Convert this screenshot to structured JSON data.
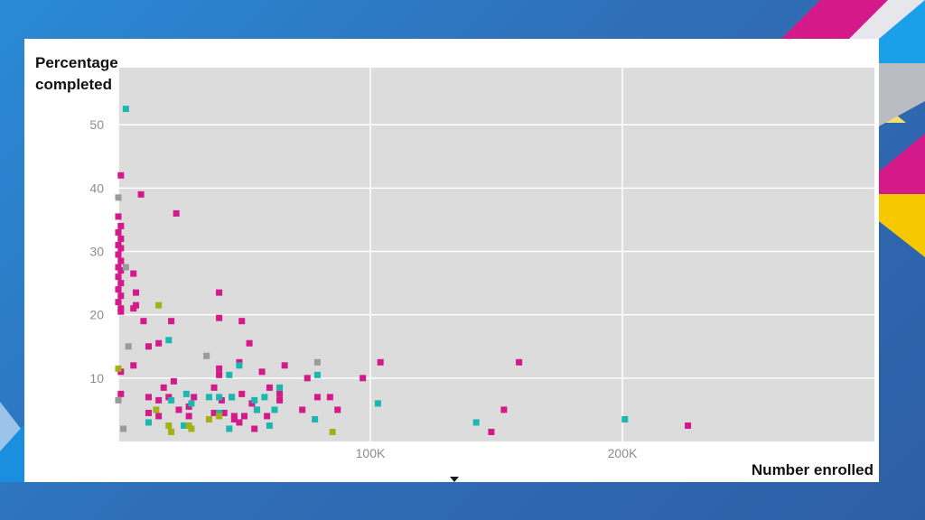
{
  "slide": {
    "background": "#2f6fb8",
    "accent_magenta": "#d4198a",
    "accent_yellow": "#f5c800",
    "accent_blue": "#1aa0e8"
  },
  "chart_data": {
    "type": "scatter",
    "title": "",
    "ylabel_lines": [
      "Percentage",
      "completed"
    ],
    "xlabel": "Number enrolled",
    "xlim": [
      0,
      300000
    ],
    "ylim": [
      0,
      59
    ],
    "x_ticks": [
      {
        "value": 100000,
        "label": "100K"
      },
      {
        "value": 200000,
        "label": "200K"
      }
    ],
    "y_ticks": [
      {
        "value": 10,
        "label": "10"
      },
      {
        "value": 20,
        "label": "20"
      },
      {
        "value": 30,
        "label": "30"
      },
      {
        "value": 40,
        "label": "40"
      },
      {
        "value": 50,
        "label": "50"
      }
    ],
    "grid": true,
    "plot_background": "#dcdcdc",
    "legend": "none",
    "series": [
      {
        "color": "#d4198a",
        "points": [
          [
            1000,
            42
          ],
          [
            9000,
            39
          ],
          [
            23000,
            36
          ],
          [
            0,
            35.5
          ],
          [
            1000,
            34
          ],
          [
            0,
            33
          ],
          [
            1000,
            32
          ],
          [
            0,
            31
          ],
          [
            1000,
            30.5
          ],
          [
            0,
            29.5
          ],
          [
            1000,
            28.5
          ],
          [
            0,
            27.5
          ],
          [
            1000,
            27
          ],
          [
            0,
            26
          ],
          [
            1000,
            25
          ],
          [
            0,
            24
          ],
          [
            1000,
            23
          ],
          [
            0,
            22
          ],
          [
            1000,
            21
          ],
          [
            1000,
            20.5
          ],
          [
            6000,
            26.5
          ],
          [
            7000,
            23.5
          ],
          [
            7000,
            21.5
          ],
          [
            6000,
            21
          ],
          [
            10000,
            19
          ],
          [
            40000,
            23.5
          ],
          [
            40000,
            19.5
          ],
          [
            49000,
            19
          ],
          [
            21000,
            19
          ],
          [
            52000,
            15.5
          ],
          [
            12000,
            15
          ],
          [
            16000,
            15.5
          ],
          [
            6000,
            12
          ],
          [
            40000,
            11.5
          ],
          [
            48000,
            12.5
          ],
          [
            57000,
            11
          ],
          [
            66000,
            12
          ],
          [
            75000,
            10
          ],
          [
            97000,
            10
          ],
          [
            104000,
            12.5
          ],
          [
            159000,
            12.5
          ],
          [
            40000,
            10.5
          ],
          [
            22000,
            9.5
          ],
          [
            18000,
            8.5
          ],
          [
            38000,
            8.5
          ],
          [
            1000,
            11
          ],
          [
            60000,
            8.5
          ],
          [
            64000,
            7.5
          ],
          [
            79000,
            7
          ],
          [
            84000,
            7
          ],
          [
            12000,
            7
          ],
          [
            16000,
            6.5
          ],
          [
            20000,
            7
          ],
          [
            30000,
            7
          ],
          [
            41000,
            6.5
          ],
          [
            45000,
            7
          ],
          [
            49000,
            7.5
          ],
          [
            53000,
            6
          ],
          [
            1000,
            7.5
          ],
          [
            24000,
            5
          ],
          [
            28000,
            5.5
          ],
          [
            42000,
            4.5
          ],
          [
            46000,
            4
          ],
          [
            55000,
            5
          ],
          [
            59000,
            4
          ],
          [
            64000,
            6.5
          ],
          [
            73000,
            5
          ],
          [
            87000,
            5
          ],
          [
            12000,
            4.5
          ],
          [
            16000,
            4
          ],
          [
            28000,
            4
          ],
          [
            38000,
            4.5
          ],
          [
            48000,
            3
          ],
          [
            50000,
            4
          ],
          [
            54000,
            2
          ],
          [
            46000,
            3.5
          ],
          [
            153000,
            5
          ],
          [
            148000,
            1.5
          ],
          [
            226000,
            2.5
          ]
        ]
      },
      {
        "color": "#1ab8b0",
        "points": [
          [
            3000,
            52.5
          ],
          [
            20000,
            16
          ],
          [
            48000,
            12
          ],
          [
            44000,
            10.5
          ],
          [
            79000,
            10.5
          ],
          [
            64000,
            8.5
          ],
          [
            27000,
            7.5
          ],
          [
            36000,
            7
          ],
          [
            40000,
            7
          ],
          [
            45000,
            7
          ],
          [
            54000,
            6.5
          ],
          [
            58000,
            7
          ],
          [
            29000,
            6
          ],
          [
            21000,
            6.5
          ],
          [
            40000,
            4.5
          ],
          [
            55000,
            5
          ],
          [
            62000,
            5
          ],
          [
            103000,
            6
          ],
          [
            12000,
            3
          ],
          [
            26000,
            2.5
          ],
          [
            44000,
            2
          ],
          [
            60000,
            2.5
          ],
          [
            78000,
            3.5
          ],
          [
            142000,
            3
          ],
          [
            201000,
            3.5
          ]
        ]
      },
      {
        "color": "#9b9b9b",
        "points": [
          [
            0,
            38.5
          ],
          [
            3000,
            27.5
          ],
          [
            4000,
            15
          ],
          [
            35000,
            13.5
          ],
          [
            79000,
            12.5
          ],
          [
            0,
            6.5
          ],
          [
            2000,
            2
          ]
        ]
      },
      {
        "color": "#a3b114",
        "points": [
          [
            16000,
            21.5
          ],
          [
            0,
            11.5
          ],
          [
            15000,
            5
          ],
          [
            36000,
            3.5
          ],
          [
            40000,
            4
          ],
          [
            20000,
            2.5
          ],
          [
            21000,
            1.5
          ],
          [
            28000,
            2.5
          ],
          [
            29000,
            2
          ],
          [
            85000,
            1.5
          ]
        ]
      }
    ]
  }
}
